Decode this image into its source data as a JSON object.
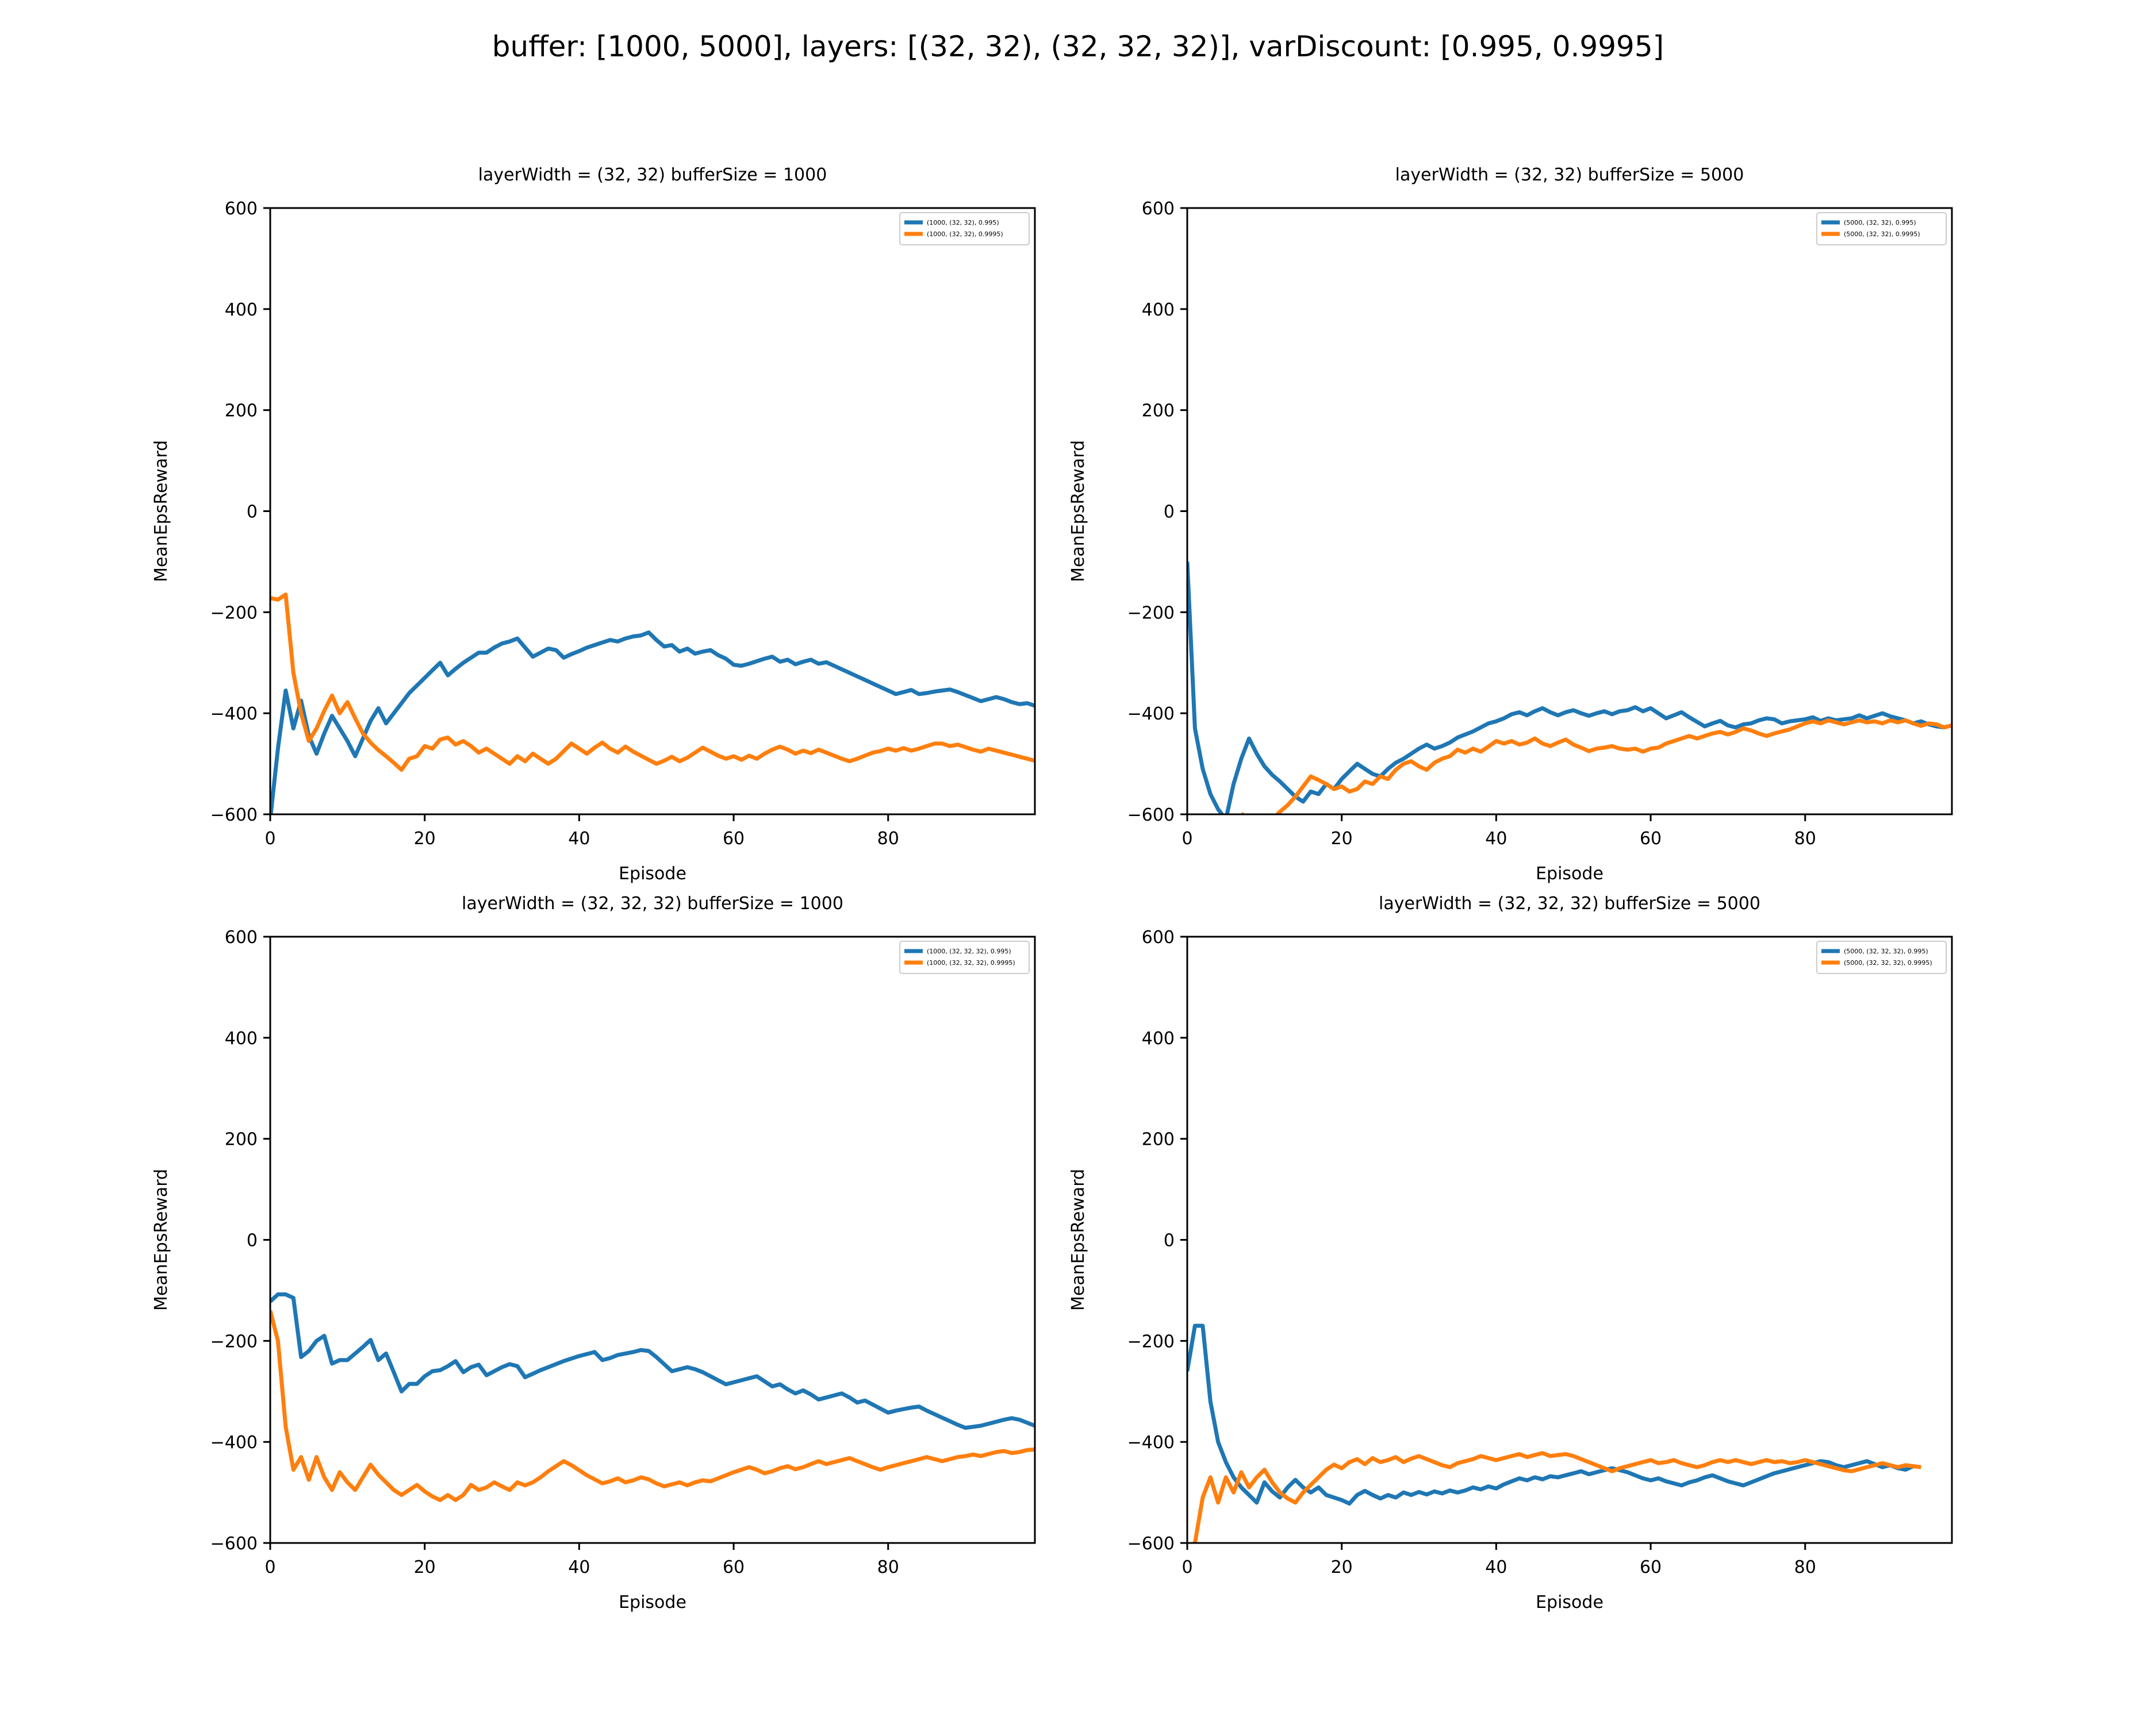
{
  "figure": {
    "suptitle": "buffer: [1000, 5000], layers: [(32, 32), (32, 32, 32)], varDiscount: [0.995, 0.9995]"
  },
  "colors": {
    "series0": "#1f77b4",
    "series1": "#ff7f0e"
  },
  "chart_data": [
    {
      "type": "line",
      "title": "layerWidth = (32, 32) bufferSize = 1000",
      "xlabel": "Episode",
      "ylabel": "MeanEpsReward",
      "xlim": [
        0,
        99
      ],
      "ylim": [
        -600,
        600
      ],
      "xticks": [
        0,
        20,
        40,
        60,
        80
      ],
      "yticks": [
        -600,
        -400,
        -200,
        0,
        200,
        400,
        600
      ],
      "grid": false,
      "legend_position": "upper right",
      "series": [
        {
          "name": "(1000, (32, 32), 0.995)",
          "x_start": 0,
          "values": [
            -610,
            -470,
            -355,
            -430,
            -375,
            -445,
            -480,
            -440,
            -405,
            -430,
            -455,
            -485,
            -450,
            -415,
            -390,
            -420,
            -400,
            -380,
            -360,
            -345,
            -330,
            -315,
            -300,
            -325,
            -312,
            -300,
            -290,
            -280,
            -280,
            -270,
            -262,
            -258,
            -252,
            -270,
            -288,
            -280,
            -272,
            -275,
            -290,
            -283,
            -277,
            -270,
            -265,
            -260,
            -255,
            -258,
            -252,
            -248,
            -246,
            -240,
            -255,
            -268,
            -265,
            -278,
            -272,
            -282,
            -278,
            -275,
            -285,
            -292,
            -304,
            -306,
            -302,
            -297,
            -292,
            -288,
            -298,
            -294,
            -303,
            -298,
            -294,
            -302,
            -299,
            -306,
            -313,
            -320,
            -327,
            -334,
            -341,
            -348,
            -355,
            -362,
            -358,
            -354,
            -362,
            -360,
            -357,
            -355,
            -353,
            -358,
            -364,
            -370,
            -376,
            -372,
            -368,
            -372,
            -378,
            -382,
            -380,
            -385
          ]
        },
        {
          "name": "(1000, (32, 32), 0.9995)",
          "x_start": 0,
          "values": [
            -172,
            -175,
            -165,
            -320,
            -400,
            -455,
            -430,
            -395,
            -365,
            -400,
            -378,
            -410,
            -440,
            -458,
            -473,
            -485,
            -498,
            -512,
            -490,
            -485,
            -465,
            -470,
            -452,
            -448,
            -462,
            -455,
            -465,
            -478,
            -470,
            -480,
            -490,
            -500,
            -485,
            -495,
            -480,
            -490,
            -500,
            -490,
            -475,
            -460,
            -470,
            -480,
            -468,
            -458,
            -470,
            -478,
            -466,
            -476,
            -484,
            -492,
            -500,
            -494,
            -486,
            -495,
            -488,
            -478,
            -468,
            -476,
            -484,
            -490,
            -485,
            -492,
            -484,
            -490,
            -480,
            -472,
            -466,
            -472,
            -480,
            -474,
            -479,
            -472,
            -478,
            -484,
            -490,
            -495,
            -490,
            -484,
            -478,
            -475,
            -470,
            -474,
            -469,
            -474,
            -470,
            -465,
            -460,
            -460,
            -465,
            -462,
            -467,
            -472,
            -476,
            -470,
            -474,
            -478,
            -482,
            -486,
            -490,
            -494
          ]
        }
      ]
    },
    {
      "type": "line",
      "title": "layerWidth = (32, 32) bufferSize = 5000",
      "xlabel": "Episode",
      "ylabel": "MeanEpsReward",
      "xlim": [
        0,
        99
      ],
      "ylim": [
        -600,
        600
      ],
      "xticks": [
        0,
        20,
        40,
        60,
        80
      ],
      "yticks": [
        -600,
        -400,
        -200,
        0,
        200,
        400,
        600
      ],
      "grid": false,
      "legend_position": "upper right",
      "series": [
        {
          "name": "(5000, (32, 32), 0.995)",
          "x_start": 0,
          "values": [
            -100,
            -430,
            -510,
            -560,
            -590,
            -610,
            -540,
            -490,
            -450,
            -480,
            -505,
            -522,
            -535,
            -550,
            -565,
            -575,
            -555,
            -560,
            -540,
            -550,
            -530,
            -515,
            -500,
            -510,
            -520,
            -525,
            -510,
            -498,
            -490,
            -480,
            -470,
            -462,
            -470,
            -465,
            -458,
            -448,
            -442,
            -436,
            -428,
            -420,
            -416,
            -410,
            -402,
            -398,
            -404,
            -396,
            -390,
            -398,
            -404,
            -398,
            -394,
            -400,
            -405,
            -400,
            -396,
            -402,
            -396,
            -394,
            -388,
            -396,
            -390,
            -400,
            -410,
            -404,
            -398,
            -408,
            -417,
            -426,
            -420,
            -415,
            -424,
            -428,
            -422,
            -420,
            -414,
            -410,
            -412,
            -420,
            -416,
            -414,
            -412,
            -408,
            -415,
            -410,
            -414,
            -412,
            -410,
            -404,
            -410,
            -405,
            -400,
            -406,
            -410,
            -414,
            -420,
            -416,
            -422,
            -426,
            -428,
            -424
          ]
        },
        {
          "name": "(5000, (32, 32), 0.9995)",
          "x_start": 7,
          "values": [
            -598,
            -615,
            -632,
            -625,
            -610,
            -595,
            -582,
            -565,
            -545,
            -525,
            -532,
            -540,
            -550,
            -545,
            -555,
            -550,
            -535,
            -540,
            -525,
            -530,
            -512,
            -500,
            -495,
            -505,
            -512,
            -498,
            -490,
            -485,
            -472,
            -478,
            -470,
            -476,
            -466,
            -455,
            -460,
            -455,
            -462,
            -458,
            -450,
            -460,
            -465,
            -458,
            -452,
            -462,
            -468,
            -475,
            -470,
            -468,
            -465,
            -470,
            -472,
            -470,
            -476,
            -470,
            -468,
            -460,
            -455,
            -450,
            -445,
            -450,
            -445,
            -440,
            -437,
            -442,
            -437,
            -430,
            -434,
            -440,
            -445,
            -440,
            -436,
            -432,
            -426,
            -420,
            -416,
            -420,
            -414,
            -418,
            -422,
            -418,
            -414,
            -418,
            -416,
            -420,
            -414,
            -418,
            -414,
            -420,
            -425,
            -420,
            -422,
            -428,
            -424
          ]
        }
      ]
    },
    {
      "type": "line",
      "title": "layerWidth = (32, 32, 32) bufferSize = 1000",
      "xlabel": "Episode",
      "ylabel": "MeanEpsReward",
      "xlim": [
        0,
        99
      ],
      "ylim": [
        -600,
        600
      ],
      "xticks": [
        0,
        20,
        40,
        60,
        80
      ],
      "yticks": [
        -600,
        -400,
        -200,
        0,
        200,
        400,
        600
      ],
      "grid": false,
      "legend_position": "upper right",
      "series": [
        {
          "name": "(1000, (32, 32, 32), 0.995)",
          "x_start": 0,
          "values": [
            -122,
            -108,
            -108,
            -115,
            -232,
            -220,
            -200,
            -190,
            -245,
            -238,
            -238,
            -225,
            -212,
            -198,
            -238,
            -225,
            -262,
            -300,
            -285,
            -285,
            -270,
            -260,
            -258,
            -250,
            -240,
            -262,
            -252,
            -247,
            -268,
            -260,
            -252,
            -246,
            -250,
            -272,
            -265,
            -258,
            -252,
            -246,
            -240,
            -235,
            -230,
            -226,
            -222,
            -238,
            -234,
            -228,
            -225,
            -222,
            -218,
            -220,
            -232,
            -246,
            -260,
            -256,
            -252,
            -256,
            -262,
            -270,
            -278,
            -286,
            -282,
            -278,
            -274,
            -270,
            -280,
            -290,
            -286,
            -296,
            -304,
            -298,
            -306,
            -316,
            -312,
            -308,
            -304,
            -312,
            -322,
            -318,
            -326,
            -334,
            -342,
            -338,
            -335,
            -332,
            -330,
            -338,
            -345,
            -352,
            -359,
            -366,
            -372,
            -370,
            -368,
            -364,
            -360,
            -356,
            -353,
            -356,
            -362,
            -368
          ]
        },
        {
          "name": "(1000, (32, 32, 32), 0.9995)",
          "x_start": 0,
          "values": [
            -140,
            -200,
            -370,
            -455,
            -430,
            -475,
            -430,
            -470,
            -495,
            -460,
            -480,
            -495,
            -470,
            -445,
            -465,
            -480,
            -495,
            -505,
            -495,
            -485,
            -498,
            -508,
            -515,
            -505,
            -515,
            -505,
            -485,
            -495,
            -490,
            -480,
            -488,
            -495,
            -480,
            -486,
            -480,
            -470,
            -458,
            -448,
            -438,
            -446,
            -456,
            -466,
            -474,
            -482,
            -478,
            -472,
            -480,
            -476,
            -470,
            -474,
            -482,
            -488,
            -484,
            -480,
            -486,
            -480,
            -476,
            -478,
            -472,
            -466,
            -460,
            -455,
            -450,
            -455,
            -462,
            -458,
            -452,
            -448,
            -454,
            -450,
            -444,
            -438,
            -444,
            -440,
            -436,
            -432,
            -438,
            -444,
            -450,
            -455,
            -450,
            -446,
            -442,
            -438,
            -434,
            -430,
            -434,
            -438,
            -434,
            -430,
            -428,
            -425,
            -428,
            -424,
            -420,
            -418,
            -422,
            -420,
            -416,
            -415
          ]
        }
      ]
    },
    {
      "type": "line",
      "title": "layerWidth = (32, 32, 32) bufferSize = 5000",
      "xlabel": "Episode",
      "ylabel": "MeanEpsReward",
      "xlim": [
        0,
        99
      ],
      "ylim": [
        -600,
        600
      ],
      "xticks": [
        0,
        20,
        40,
        60,
        80
      ],
      "yticks": [
        -600,
        -400,
        -200,
        0,
        200,
        400,
        600
      ],
      "grid": false,
      "legend_position": "upper right",
      "series": [
        {
          "name": "(5000, (32, 32, 32), 0.995)",
          "x_start": 0,
          "values": [
            -260,
            -170,
            -170,
            -320,
            -400,
            -440,
            -470,
            -490,
            -505,
            -520,
            -480,
            -498,
            -510,
            -490,
            -475,
            -490,
            -500,
            -490,
            -505,
            -510,
            -515,
            -522,
            -505,
            -497,
            -505,
            -512,
            -505,
            -510,
            -500,
            -505,
            -499,
            -504,
            -498,
            -502,
            -496,
            -500,
            -496,
            -490,
            -494,
            -488,
            -492,
            -484,
            -478,
            -472,
            -476,
            -470,
            -474,
            -468,
            -470,
            -466,
            -462,
            -458,
            -464,
            -460,
            -456,
            -452,
            -456,
            -460,
            -466,
            -472,
            -476,
            -472,
            -478,
            -482,
            -486,
            -480,
            -476,
            -470,
            -466,
            -472,
            -478,
            -482,
            -486,
            -480,
            -474,
            -468,
            -462,
            -458,
            -454,
            -450,
            -446,
            -442,
            -438,
            -440,
            -446,
            -450,
            -446,
            -442,
            -438,
            -444,
            -450,
            -446,
            -452,
            -455,
            -448
          ]
        },
        {
          "name": "(5000, (32, 32, 32), 0.9995)",
          "x_start": 0,
          "values": [
            -640,
            -600,
            -510,
            -470,
            -520,
            -470,
            -500,
            -460,
            -490,
            -470,
            -455,
            -480,
            -500,
            -512,
            -520,
            -500,
            -485,
            -470,
            -455,
            -445,
            -452,
            -440,
            -434,
            -444,
            -432,
            -440,
            -436,
            -430,
            -440,
            -433,
            -428,
            -434,
            -440,
            -446,
            -450,
            -442,
            -438,
            -434,
            -428,
            -432,
            -436,
            -432,
            -428,
            -424,
            -430,
            -426,
            -422,
            -428,
            -426,
            -424,
            -428,
            -434,
            -440,
            -446,
            -452,
            -458,
            -452,
            -448,
            -444,
            -440,
            -436,
            -442,
            -440,
            -436,
            -442,
            -446,
            -450,
            -446,
            -440,
            -436,
            -440,
            -436,
            -440,
            -444,
            -440,
            -436,
            -440,
            -438,
            -442,
            -440,
            -436,
            -440,
            -444,
            -448,
            -452,
            -456,
            -458,
            -454,
            -450,
            -446,
            -442,
            -446,
            -450,
            -446,
            -448,
            -450
          ]
        }
      ]
    }
  ]
}
